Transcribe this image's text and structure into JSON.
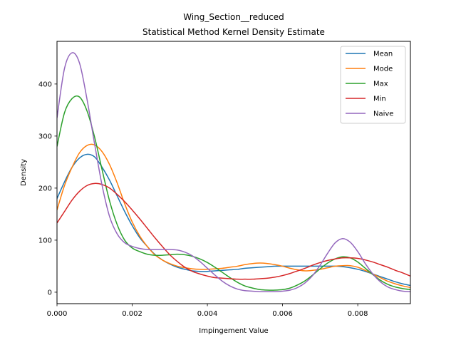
{
  "chart_data": {
    "type": "line",
    "title_line1": "Wing_Section__reduced",
    "title_line2": "Statistical Method Kernel Density Estimate",
    "xlabel": "Impingement Value",
    "ylabel": "Density",
    "xlim": [
      0,
      0.0094
    ],
    "ylim": [
      -22,
      482
    ],
    "x_ticks": [
      0,
      0.002,
      0.004,
      0.006,
      0.008
    ],
    "x_tick_labels": [
      "0.000",
      "0.002",
      "0.004",
      "0.006",
      "0.008"
    ],
    "y_ticks": [
      0,
      100,
      200,
      300,
      400
    ],
    "y_tick_labels": [
      "0",
      "100",
      "200",
      "300",
      "400"
    ],
    "grid": false,
    "legend_position": "top-right",
    "series": [
      {
        "name": "Mean",
        "color": "#1f77b4",
        "x": [
          0,
          0.0002,
          0.0004,
          0.0006,
          0.0008,
          0.001,
          0.0012,
          0.0014,
          0.0016,
          0.0018,
          0.002,
          0.0022,
          0.0024,
          0.0026,
          0.0028,
          0.003,
          0.0032,
          0.0034,
          0.0036,
          0.0038,
          0.004,
          0.0042,
          0.0044,
          0.0046,
          0.0048,
          0.005,
          0.0052,
          0.0054,
          0.0056,
          0.0058,
          0.006,
          0.0062,
          0.0064,
          0.0066,
          0.0068,
          0.007,
          0.0072,
          0.0074,
          0.0076,
          0.0078,
          0.008,
          0.0082,
          0.0084,
          0.0086,
          0.0088,
          0.009,
          0.0092,
          0.0094
        ],
        "y": [
          180,
          212,
          240,
          258,
          265,
          260,
          240,
          215,
          185,
          155,
          128,
          105,
          88,
          73,
          62,
          54,
          48,
          44,
          41,
          40,
          40,
          41,
          42,
          43,
          44,
          46,
          47,
          48,
          49,
          50,
          50,
          50,
          50,
          50,
          50,
          50,
          50,
          50,
          49,
          47,
          44,
          40,
          35,
          30,
          25,
          20,
          16,
          13
        ]
      },
      {
        "name": "Mode",
        "color": "#ff7f0e",
        "x": [
          0,
          0.0002,
          0.0004,
          0.0006,
          0.0008,
          0.001,
          0.0012,
          0.0014,
          0.0016,
          0.0018,
          0.002,
          0.0022,
          0.0024,
          0.0026,
          0.0028,
          0.003,
          0.0032,
          0.0034,
          0.0036,
          0.0038,
          0.004,
          0.0042,
          0.0044,
          0.0046,
          0.0048,
          0.005,
          0.0052,
          0.0054,
          0.0056,
          0.0058,
          0.006,
          0.0062,
          0.0064,
          0.0066,
          0.0068,
          0.007,
          0.0072,
          0.0074,
          0.0076,
          0.0078,
          0.008,
          0.0082,
          0.0084,
          0.0086,
          0.0088,
          0.009,
          0.0092,
          0.0094
        ],
        "y": [
          158,
          205,
          240,
          268,
          282,
          283,
          270,
          245,
          210,
          170,
          135,
          108,
          88,
          72,
          62,
          55,
          50,
          47,
          45,
          44,
          44,
          45,
          46,
          48,
          50,
          53,
          55,
          56,
          55,
          53,
          50,
          46,
          43,
          41,
          42,
          44,
          47,
          50,
          51,
          51,
          48,
          42,
          35,
          28,
          21,
          16,
          12,
          9
        ]
      },
      {
        "name": "Max",
        "color": "#2ca02c",
        "x": [
          0,
          0.0002,
          0.0004,
          0.0006,
          0.0008,
          0.001,
          0.0012,
          0.0014,
          0.0016,
          0.0018,
          0.002,
          0.0022,
          0.0024,
          0.0026,
          0.0028,
          0.003,
          0.0032,
          0.0034,
          0.0036,
          0.0038,
          0.004,
          0.0042,
          0.0044,
          0.0046,
          0.0048,
          0.005,
          0.0052,
          0.0054,
          0.0056,
          0.0058,
          0.006,
          0.0062,
          0.0064,
          0.0066,
          0.0068,
          0.007,
          0.0072,
          0.0074,
          0.0076,
          0.0078,
          0.008,
          0.0082,
          0.0084,
          0.0086,
          0.0088,
          0.009,
          0.0092,
          0.0094
        ],
        "y": [
          280,
          345,
          372,
          375,
          348,
          298,
          235,
          175,
          130,
          100,
          85,
          78,
          73,
          71,
          71,
          72,
          73,
          72,
          69,
          64,
          57,
          48,
          38,
          28,
          19,
          12,
          8,
          5,
          4,
          4,
          5,
          8,
          14,
          22,
          33,
          45,
          56,
          64,
          68,
          66,
          58,
          46,
          34,
          23,
          15,
          10,
          7,
          5
        ]
      },
      {
        "name": "Min",
        "color": "#d62728",
        "x": [
          0,
          0.0002,
          0.0004,
          0.0006,
          0.0008,
          0.001,
          0.0012,
          0.0014,
          0.0016,
          0.0018,
          0.002,
          0.0022,
          0.0024,
          0.0026,
          0.0028,
          0.003,
          0.0032,
          0.0034,
          0.0036,
          0.0038,
          0.004,
          0.0042,
          0.0044,
          0.0046,
          0.0048,
          0.005,
          0.0052,
          0.0054,
          0.0056,
          0.0058,
          0.006,
          0.0062,
          0.0064,
          0.0066,
          0.0068,
          0.007,
          0.0072,
          0.0074,
          0.0076,
          0.0078,
          0.008,
          0.0082,
          0.0084,
          0.0086,
          0.0088,
          0.009,
          0.0092,
          0.0094
        ],
        "y": [
          133,
          155,
          177,
          194,
          205,
          209,
          207,
          200,
          188,
          174,
          158,
          141,
          123,
          105,
          88,
          72,
          59,
          48,
          40,
          35,
          31,
          28,
          27,
          26,
          25,
          25,
          25,
          26,
          27,
          29,
          32,
          36,
          41,
          46,
          52,
          57,
          61,
          64,
          66,
          66,
          65,
          62,
          58,
          53,
          48,
          42,
          37,
          31
        ]
      },
      {
        "name": "Naive",
        "color": "#9467bd",
        "x": [
          0,
          0.0002,
          0.0004,
          0.0006,
          0.0008,
          0.001,
          0.0012,
          0.0014,
          0.0016,
          0.0018,
          0.002,
          0.0022,
          0.0024,
          0.0026,
          0.0028,
          0.003,
          0.0032,
          0.0034,
          0.0036,
          0.0038,
          0.004,
          0.0042,
          0.0044,
          0.0046,
          0.0048,
          0.005,
          0.0052,
          0.0054,
          0.0056,
          0.0058,
          0.006,
          0.0062,
          0.0064,
          0.0066,
          0.0068,
          0.007,
          0.0072,
          0.0074,
          0.0076,
          0.0078,
          0.008,
          0.0082,
          0.0084,
          0.0086,
          0.0088,
          0.009,
          0.0092,
          0.0094
        ],
        "y": [
          335,
          430,
          460,
          440,
          370,
          285,
          205,
          145,
          112,
          95,
          88,
          84,
          82,
          82,
          82,
          82,
          81,
          77,
          70,
          59,
          46,
          33,
          21,
          12,
          6,
          3,
          2,
          1,
          1,
          1,
          2,
          4,
          9,
          18,
          32,
          52,
          75,
          95,
          103,
          96,
          78,
          55,
          35,
          20,
          10,
          5,
          2,
          1
        ]
      }
    ]
  }
}
